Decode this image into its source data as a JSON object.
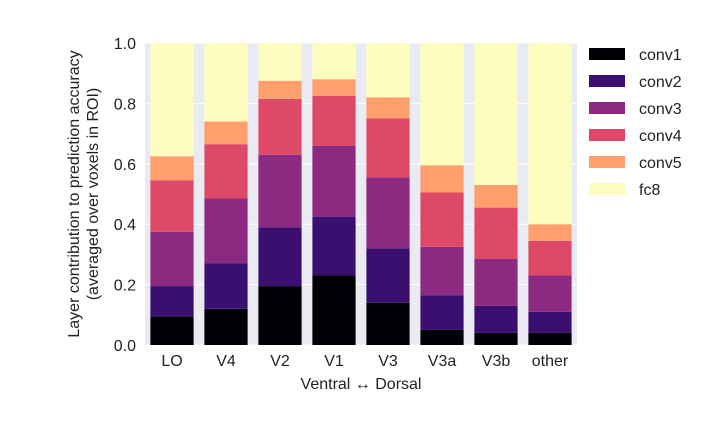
{
  "chart_data": {
    "type": "bar",
    "stacked": true,
    "title": "",
    "xlabel": "Ventral ↔ Dorsal",
    "ylabel": [
      "Layer contribution to prediction accuracy",
      "(averaged over voxels in ROI)"
    ],
    "ylim": [
      0,
      1.0
    ],
    "yticks": [
      "0.0",
      "0.2",
      "0.4",
      "0.6",
      "0.8",
      "1.0"
    ],
    "grid": true,
    "legend_position": "right",
    "categories": [
      "LO",
      "V4",
      "V2",
      "V1",
      "V3",
      "V3a",
      "V3b",
      "other"
    ],
    "series": [
      {
        "name": "conv1",
        "color": "#000004",
        "values": [
          0.095,
          0.12,
          0.195,
          0.23,
          0.14,
          0.05,
          0.04,
          0.04
        ]
      },
      {
        "name": "conv2",
        "color": "#3b0f70",
        "values": [
          0.1,
          0.15,
          0.195,
          0.195,
          0.18,
          0.115,
          0.09,
          0.07
        ]
      },
      {
        "name": "conv3",
        "color": "#8c2981",
        "values": [
          0.18,
          0.215,
          0.24,
          0.235,
          0.235,
          0.16,
          0.155,
          0.12
        ]
      },
      {
        "name": "conv4",
        "color": "#de4968",
        "values": [
          0.17,
          0.18,
          0.185,
          0.165,
          0.195,
          0.18,
          0.17,
          0.115
        ]
      },
      {
        "name": "conv5",
        "color": "#fe9f6d",
        "values": [
          0.08,
          0.075,
          0.06,
          0.055,
          0.07,
          0.09,
          0.075,
          0.055
        ]
      },
      {
        "name": "fc8",
        "color": "#fcfdbf",
        "values": [
          0.375,
          0.26,
          0.125,
          0.12,
          0.18,
          0.405,
          0.47,
          0.6
        ]
      }
    ]
  }
}
